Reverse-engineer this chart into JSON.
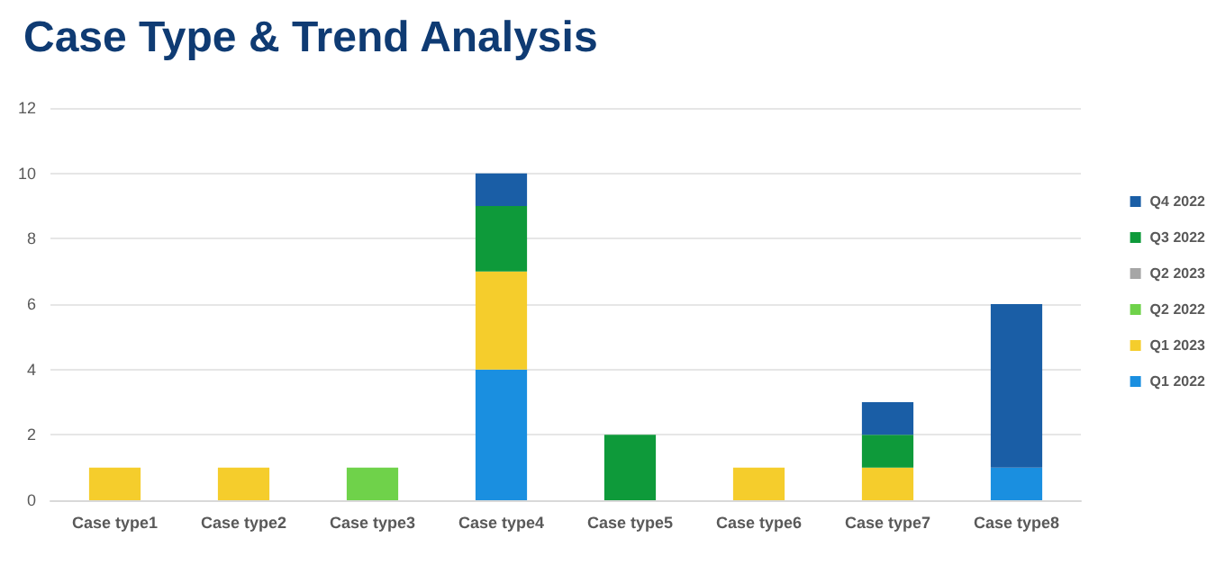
{
  "chart_data": {
    "type": "bar",
    "title": "Case Type & Trend Analysis",
    "stacked": true,
    "categories": [
      "Case type1",
      "Case type2",
      "Case type3",
      "Case type4",
      "Case type5",
      "Case type6",
      "Case type7",
      "Case type8"
    ],
    "series": [
      {
        "name": "Q1 2022",
        "color": "#1a8fe0",
        "values": [
          0,
          0,
          0,
          4,
          0,
          0,
          0,
          1
        ]
      },
      {
        "name": "Q1 2023",
        "color": "#f5cd2c",
        "values": [
          1,
          1,
          0,
          3,
          0,
          1,
          1,
          0
        ]
      },
      {
        "name": "Q2 2022",
        "color": "#6fd24a",
        "values": [
          0,
          0,
          1,
          0,
          0,
          0,
          0,
          0
        ]
      },
      {
        "name": "Q2 2023",
        "color": "#a6a6a6",
        "values": [
          0,
          0,
          0,
          0,
          0,
          0,
          0,
          0
        ]
      },
      {
        "name": "Q3 2022",
        "color": "#0e9a3a",
        "values": [
          0,
          0,
          0,
          2,
          2,
          0,
          1,
          0
        ]
      },
      {
        "name": "Q4 2022",
        "color": "#1a5ea6",
        "values": [
          0,
          0,
          0,
          1,
          0,
          0,
          1,
          5
        ]
      }
    ],
    "ylim": [
      0,
      12
    ],
    "yticks": [
      0,
      2,
      4,
      6,
      8,
      10,
      12
    ],
    "grid": "y",
    "legend": "right"
  }
}
